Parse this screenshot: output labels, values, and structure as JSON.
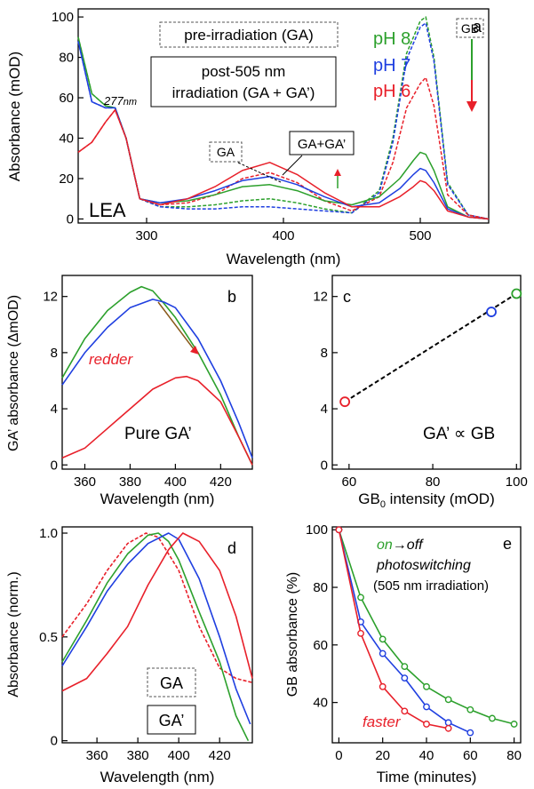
{
  "chart_data": [
    {
      "panel": "a",
      "type": "line",
      "xlabel": "Wavelength (nm)",
      "ylabel": "Absorbance (mOD)",
      "xlim": [
        250,
        550
      ],
      "ylim": [
        -2,
        104
      ],
      "xticks": [
        300,
        400,
        500
      ],
      "yticks": [
        0,
        20,
        40,
        60,
        80,
        100
      ],
      "legend": {
        "box_dashed": "pre-irradiation (GA)",
        "box_solid_line1": "post-505 nm",
        "box_solid_line2": "irradiation (GA + GA’)",
        "ph_labels": [
          {
            "text": "pH 8",
            "color": "#2ca02c"
          },
          {
            "text": "pH 7",
            "color": "#1f3fe0"
          },
          {
            "text": "pH 6",
            "color": "#e8202a"
          }
        ]
      },
      "annotations": {
        "peak_277": "277",
        "peak_277_unit": "nm",
        "ga_label": "GA",
        "ga_plus_label": "GA+GA’",
        "gb_label": "GB",
        "sample_label": "LEA"
      },
      "series": [
        {
          "name": "pH 8",
          "style": "dashed",
          "color": "#2ca02c",
          "x": [
            250,
            260,
            270,
            277,
            285,
            295,
            310,
            330,
            350,
            370,
            390,
            410,
            430,
            450,
            470,
            480,
            490,
            500,
            504,
            510,
            520,
            535,
            550
          ],
          "y": [
            90,
            62,
            56,
            55,
            40,
            10,
            6,
            6,
            7,
            9,
            10,
            8,
            5,
            3,
            14,
            40,
            82,
            98,
            100,
            80,
            18,
            2,
            0
          ]
        },
        {
          "name": "pH 7",
          "style": "dashed",
          "color": "#1f3fe0",
          "x": [
            250,
            260,
            270,
            277,
            285,
            295,
            310,
            330,
            350,
            370,
            390,
            410,
            430,
            450,
            470,
            480,
            490,
            500,
            504,
            510,
            520,
            535,
            550
          ],
          "y": [
            88,
            58,
            55,
            55,
            40,
            10,
            6,
            5,
            5,
            6,
            6,
            5,
            4,
            3,
            13,
            38,
            79,
            95,
            97,
            78,
            17,
            2,
            0
          ]
        },
        {
          "name": "pH 6",
          "style": "dashed",
          "color": "#e8202a",
          "x": [
            250,
            260,
            270,
            277,
            285,
            295,
            310,
            330,
            350,
            370,
            390,
            410,
            430,
            450,
            470,
            480,
            490,
            500,
            504,
            510,
            520,
            535,
            550
          ],
          "y": [
            33,
            38,
            48,
            54,
            40,
            10,
            7,
            8,
            12,
            20,
            23,
            18,
            9,
            4,
            11,
            28,
            55,
            67,
            70,
            56,
            12,
            2,
            0
          ]
        },
        {
          "name": "pH 8",
          "style": "solid",
          "color": "#2ca02c",
          "x": [
            250,
            260,
            270,
            277,
            285,
            295,
            310,
            330,
            350,
            370,
            390,
            410,
            430,
            450,
            470,
            485,
            495,
            500,
            504,
            510,
            520,
            535,
            550
          ],
          "y": [
            90,
            62,
            56,
            55,
            40,
            10,
            8,
            9,
            12,
            16,
            17,
            14,
            9,
            7,
            11,
            20,
            29,
            33,
            32,
            24,
            6,
            1,
            0
          ]
        },
        {
          "name": "pH 7",
          "style": "solid",
          "color": "#1f3fe0",
          "x": [
            250,
            260,
            270,
            277,
            285,
            295,
            310,
            330,
            350,
            370,
            390,
            410,
            430,
            450,
            470,
            485,
            495,
            500,
            504,
            510,
            520,
            535,
            550
          ],
          "y": [
            88,
            58,
            55,
            55,
            40,
            10,
            8,
            10,
            14,
            19,
            21,
            17,
            11,
            6,
            8,
            15,
            22,
            25,
            24,
            18,
            5,
            1,
            0
          ]
        },
        {
          "name": "pH 6",
          "style": "solid",
          "color": "#e8202a",
          "x": [
            250,
            260,
            270,
            277,
            285,
            295,
            310,
            330,
            350,
            370,
            390,
            410,
            430,
            450,
            470,
            485,
            495,
            500,
            504,
            510,
            520,
            535,
            550
          ],
          "y": [
            33,
            38,
            48,
            54,
            40,
            10,
            7,
            10,
            16,
            24,
            28,
            22,
            13,
            6,
            6,
            11,
            16,
            19,
            18,
            14,
            4,
            1,
            0
          ]
        }
      ]
    },
    {
      "panel": "b",
      "type": "line",
      "xlabel": "Wavelength (nm)",
      "ylabel": "GA’ absorbance (ΔmOD)",
      "xlim": [
        350,
        434
      ],
      "ylim": [
        -0.3,
        13.5
      ],
      "xticks": [
        360,
        380,
        400,
        420
      ],
      "yticks": [
        0,
        4,
        8,
        12
      ],
      "annotations": {
        "redder": "redder",
        "pure": "Pure GA’"
      },
      "series": [
        {
          "color": "#2ca02c",
          "x": [
            350,
            360,
            370,
            380,
            385,
            390,
            395,
            400,
            410,
            420,
            428,
            434
          ],
          "y": [
            6.2,
            9,
            11,
            12.3,
            12.7,
            12.4,
            11.5,
            10.5,
            8,
            5,
            2,
            0
          ]
        },
        {
          "color": "#1f3fe0",
          "x": [
            350,
            360,
            370,
            380,
            390,
            395,
            400,
            410,
            420,
            428,
            434
          ],
          "y": [
            5.7,
            8,
            9.8,
            11.2,
            11.8,
            11.6,
            11.2,
            9,
            6,
            3,
            0.5
          ]
        },
        {
          "color": "#e8202a",
          "x": [
            350,
            360,
            370,
            380,
            390,
            400,
            405,
            410,
            420,
            428,
            434
          ],
          "y": [
            0.5,
            1.2,
            2.6,
            4,
            5.4,
            6.2,
            6.3,
            6,
            4.5,
            2,
            0
          ]
        }
      ]
    },
    {
      "panel": "c",
      "type": "scatter",
      "xlabel_main": "GB",
      "xlabel_sub": "0",
      "xlabel_rest": " intensity (mOD)",
      "xlim": [
        56,
        101
      ],
      "ylim": [
        -0.3,
        13.5
      ],
      "xticks": [
        60,
        80,
        100
      ],
      "yticks": [
        0,
        4,
        8,
        12
      ],
      "annotation": "GA’ ∝ GB",
      "points": [
        {
          "x": 59,
          "y": 4.5,
          "color": "#e8202a"
        },
        {
          "x": 94,
          "y": 10.9,
          "color": "#1f3fe0"
        },
        {
          "x": 100,
          "y": 12.2,
          "color": "#2ca02c"
        }
      ]
    },
    {
      "panel": "d",
      "type": "line",
      "xlabel": "Wavelength (nm)",
      "ylabel": "Absorbance (norm.)",
      "xlim": [
        343,
        436
      ],
      "ylim": [
        -0.01,
        1.03
      ],
      "xticks": [
        360,
        380,
        400,
        420
      ],
      "yticks": [
        0,
        0.5,
        1.0
      ],
      "ytick_labels": [
        "0",
        "0.5",
        "1.0"
      ],
      "annotations": {
        "ga": "GA",
        "ga_prime": "GA’"
      },
      "series": [
        {
          "style": "dashed",
          "color": "#e8202a",
          "x": [
            343,
            355,
            365,
            375,
            384,
            390,
            400,
            410,
            420,
            428,
            436
          ],
          "y": [
            0.5,
            0.66,
            0.82,
            0.95,
            1.0,
            0.98,
            0.82,
            0.55,
            0.35,
            0.3,
            0.28
          ]
        },
        {
          "color": "#2ca02c",
          "x": [
            343,
            355,
            365,
            375,
            385,
            390,
            395,
            400,
            410,
            420,
            428,
            434
          ],
          "y": [
            0.38,
            0.58,
            0.76,
            0.9,
            0.99,
            1.0,
            0.96,
            0.87,
            0.62,
            0.38,
            0.12,
            0
          ]
        },
        {
          "color": "#1f3fe0",
          "x": [
            343,
            355,
            365,
            375,
            385,
            395,
            400,
            410,
            420,
            428,
            435
          ],
          "y": [
            0.36,
            0.55,
            0.72,
            0.85,
            0.95,
            1.0,
            0.97,
            0.78,
            0.5,
            0.25,
            0.08
          ]
        },
        {
          "color": "#e8202a",
          "x": [
            343,
            355,
            365,
            375,
            385,
            395,
            402,
            410,
            420,
            428,
            436
          ],
          "y": [
            0.24,
            0.3,
            0.42,
            0.55,
            0.75,
            0.92,
            1.0,
            0.96,
            0.82,
            0.6,
            0.3
          ]
        }
      ]
    },
    {
      "panel": "e",
      "type": "line",
      "xlabel": "Time (minutes)",
      "ylabel": "GB absorbance (%)",
      "xlim": [
        -3,
        83
      ],
      "ylim": [
        26,
        101
      ],
      "xticks": [
        0,
        20,
        40,
        60,
        80
      ],
      "yticks": [
        40,
        60,
        80,
        100
      ],
      "annotations": {
        "on": "on",
        "arrow_off": "→off",
        "photoswitching": "photoswitching",
        "irradiation": "(505 nm irradiation)",
        "faster": "faster"
      },
      "series": [
        {
          "color": "#2ca02c",
          "x": [
            0,
            10,
            20,
            30,
            40,
            50,
            60,
            70,
            80
          ],
          "y": [
            100,
            76.5,
            62,
            52.5,
            45.5,
            41,
            37.5,
            34.5,
            32.5
          ]
        },
        {
          "color": "#1f3fe0",
          "x": [
            0,
            10,
            20,
            30,
            40,
            50,
            60
          ],
          "y": [
            100,
            68,
            57,
            48.5,
            38.5,
            33,
            29.5
          ]
        },
        {
          "color": "#e8202a",
          "x": [
            0,
            10,
            20,
            30,
            40,
            50
          ],
          "y": [
            100,
            64,
            45.5,
            37,
            32.5,
            31
          ]
        }
      ]
    }
  ]
}
